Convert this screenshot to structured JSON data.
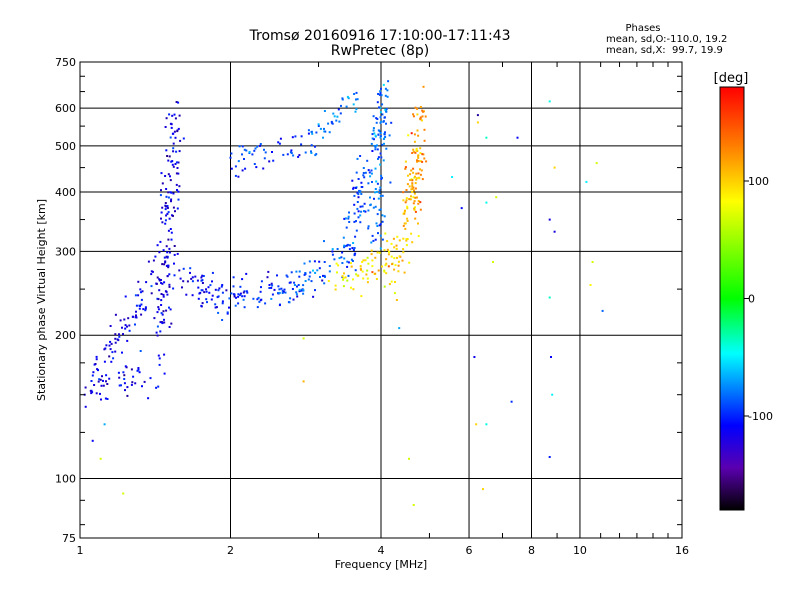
{
  "chart_data": {
    "type": "scatter",
    "title": "Tromsø 20160916 17:10:00-17:11:43",
    "subtitle": "RwPretec (8p)",
    "xlabel": "Frequency [MHz]",
    "ylabel": "Stationary phase Virtual Height [km]",
    "x_scale": "log",
    "y_scale": "log",
    "xlim": [
      1,
      16
    ],
    "ylim": [
      75,
      750
    ],
    "x_ticks": [
      1,
      2,
      4,
      6,
      8,
      10,
      16
    ],
    "x_tick_labels": [
      "1",
      "2",
      "4",
      "6",
      "8",
      "10",
      "16"
    ],
    "y_ticks": [
      75,
      100,
      200,
      300,
      400,
      500,
      600,
      750
    ],
    "y_tick_labels": [
      "75",
      "100",
      "200",
      "300",
      "400",
      "500",
      "600",
      "750"
    ],
    "grid": true,
    "stats": {
      "heading": "Phases",
      "line_o": "mean, sd,O:-110.0, 19.2",
      "line_x": "mean, sd,X:  99.7, 19.9"
    },
    "colorbar": {
      "label": "[deg]",
      "range": [
        -180,
        180
      ],
      "ticks": [
        100,
        0,
        -100
      ],
      "tick_labels": [
        "100",
        "0",
        "-100"
      ],
      "colormap": "rainbow"
    },
    "series": [
      {
        "type": "segments",
        "points_per_unit": 60,
        "spread": 0.045,
        "segments": [
          {
            "x": [
              1.0,
              1.45
            ],
            "y": [
              150,
              170
            ],
            "c": -115
          },
          {
            "x": [
              1.05,
              1.5
            ],
            "y": [
              160,
              290
            ],
            "c": -115
          },
          {
            "x": [
              1.45,
              1.55
            ],
            "y": [
              200,
              600
            ],
            "c": -118
          },
          {
            "x": [
              1.5,
              1.8
            ],
            "y": [
              290,
              245
            ],
            "c": -112
          },
          {
            "x": [
              1.7,
              2.6
            ],
            "y": [
              240,
              262
            ],
            "c": -108
          },
          {
            "x": [
              1.9,
              3.2
            ],
            "y": [
              230,
              265
            ],
            "c": -95
          },
          {
            "x": [
              2.6,
              3.6
            ],
            "y": [
              260,
              300
            ],
            "c": -80
          },
          {
            "x": [
              3.4,
              3.95
            ],
            "y": [
              295,
              560
            ],
            "c": -85
          },
          {
            "x": [
              3.9,
              4.05
            ],
            "y": [
              300,
              650
            ],
            "c": -75
          },
          {
            "x": [
              2.0,
              2.8
            ],
            "y": [
              460,
              500
            ],
            "c": -95
          },
          {
            "x": [
              2.8,
              3.6
            ],
            "y": [
              500,
              640
            ],
            "c": -75
          },
          {
            "x": [
              3.2,
              4.2
            ],
            "y": [
              255,
              290
            ],
            "c": 110
          },
          {
            "x": [
              3.6,
              4.4
            ],
            "y": [
              270,
              300
            ],
            "c": 120
          },
          {
            "x": [
              4.3,
              4.8
            ],
            "y": [
              260,
              500
            ],
            "c": 125
          },
          {
            "x": [
              4.6,
              4.8
            ],
            "y": [
              380,
              600
            ],
            "c": 140
          }
        ]
      },
      {
        "type": "scattered",
        "points": [
          [
            1.06,
            120,
            -110
          ],
          [
            1.1,
            110,
            95
          ],
          [
            1.22,
            93,
            95
          ],
          [
            1.12,
            130,
            -60
          ],
          [
            2.8,
            197,
            95
          ],
          [
            2.8,
            160,
            130
          ],
          [
            4.35,
            207,
            -60
          ],
          [
            4.55,
            110,
            95
          ],
          [
            4.65,
            88,
            95
          ],
          [
            5.8,
            370,
            -105
          ],
          [
            6.15,
            180,
            -115
          ],
          [
            6.2,
            130,
            120
          ],
          [
            6.4,
            95,
            120
          ],
          [
            6.5,
            130,
            -30
          ],
          [
            6.7,
            285,
            95
          ],
          [
            6.5,
            520,
            -20
          ],
          [
            7.3,
            145,
            -95
          ],
          [
            7.5,
            520,
            -110
          ],
          [
            6.25,
            580,
            -140
          ],
          [
            8.7,
            620,
            -30
          ],
          [
            8.7,
            350,
            -120
          ],
          [
            8.75,
            180,
            -110
          ],
          [
            8.8,
            150,
            -40
          ],
          [
            8.7,
            111,
            -100
          ],
          [
            8.7,
            240,
            -20
          ],
          [
            8.9,
            450,
            120
          ],
          [
            10.3,
            420,
            -40
          ],
          [
            10.8,
            460,
            95
          ],
          [
            10.6,
            285,
            95
          ],
          [
            11.1,
            225,
            -80
          ],
          [
            10.5,
            255,
            110
          ],
          [
            5.55,
            430,
            -40
          ],
          [
            6.5,
            380,
            -30
          ],
          [
            6.8,
            390,
            95
          ],
          [
            6.25,
            560,
            120
          ],
          [
            8.9,
            330,
            -120
          ]
        ]
      }
    ]
  }
}
